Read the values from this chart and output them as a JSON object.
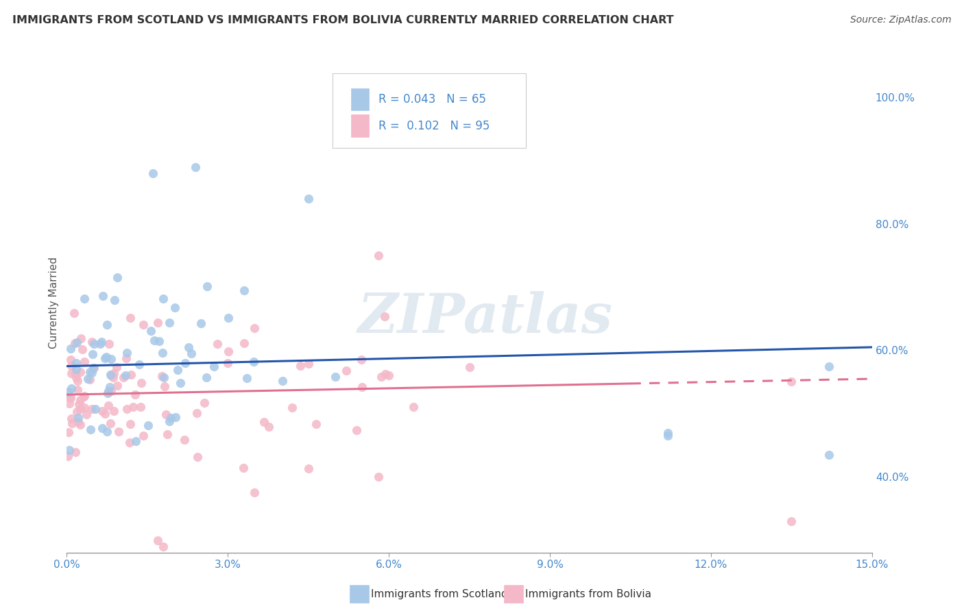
{
  "title": "IMMIGRANTS FROM SCOTLAND VS IMMIGRANTS FROM BOLIVIA CURRENTLY MARRIED CORRELATION CHART",
  "source": "Source: ZipAtlas.com",
  "ylabel": "Currently Married",
  "x_min": 0.0,
  "x_max": 15.0,
  "y_min": 28.0,
  "y_max": 107.0,
  "y_ticks": [
    40.0,
    60.0,
    80.0,
    100.0
  ],
  "x_ticks": [
    0.0,
    3.0,
    6.0,
    9.0,
    12.0,
    15.0
  ],
  "scotland_color": "#a8c8e8",
  "bolivia_color": "#f4b8c8",
  "scotland_line_color": "#2255aa",
  "bolivia_line_color": "#e07090",
  "R_scotland": 0.043,
  "N_scotland": 65,
  "R_bolivia": 0.102,
  "N_bolivia": 95,
  "watermark": "ZIPatlas",
  "legend_labels": [
    "Immigrants from Scotland",
    "Immigrants from Bolivia"
  ],
  "background_color": "#ffffff",
  "grid_color": "#cccccc",
  "tick_color": "#4488cc",
  "scotland_trend_y0": 57.5,
  "scotland_trend_y1": 60.5,
  "bolivia_trend_y0": 53.0,
  "bolivia_trend_y1": 55.5,
  "bolivia_solid_end": 10.5
}
